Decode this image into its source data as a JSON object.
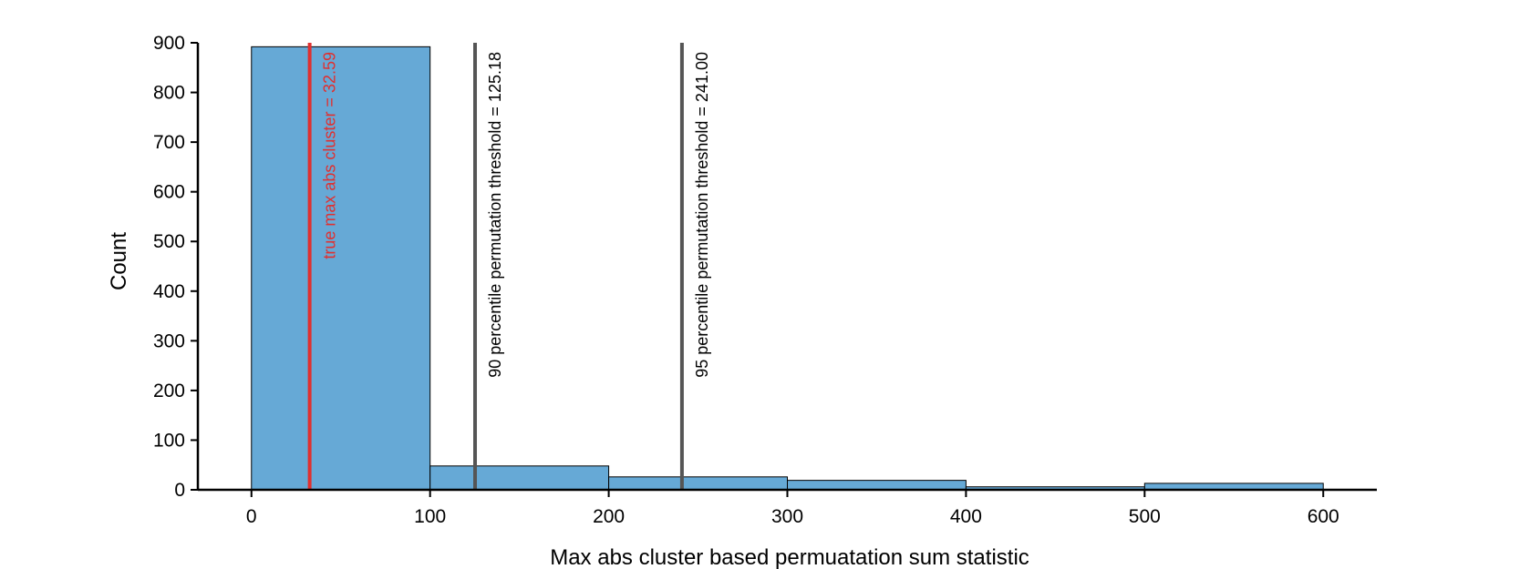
{
  "chart_data": {
    "type": "bar",
    "title": "",
    "xlabel": "Max abs cluster based permuatation sum statistic",
    "ylabel": "Count",
    "xlim": [
      -30,
      630
    ],
    "ylim": [
      0,
      900
    ],
    "xticks": [
      0,
      100,
      200,
      300,
      400,
      500,
      600
    ],
    "yticks": [
      0,
      100,
      200,
      300,
      400,
      500,
      600,
      700,
      800,
      900
    ],
    "bins": [
      {
        "x0": 0,
        "x1": 100,
        "count": 892
      },
      {
        "x0": 100,
        "x1": 200,
        "count": 48
      },
      {
        "x0": 200,
        "x1": 300,
        "count": 26
      },
      {
        "x0": 300,
        "x1": 400,
        "count": 19
      },
      {
        "x0": 400,
        "x1": 500,
        "count": 6
      },
      {
        "x0": 500,
        "x1": 600,
        "count": 13
      }
    ],
    "bar_color": "#66a9d6",
    "grid": false,
    "vlines": [
      {
        "x": 32.59,
        "label": "true max abs cluster = 32.59",
        "color": "#e03030"
      },
      {
        "x": 125.18,
        "label": "90 percentile permutation threshold = 125.18",
        "color": "#555555"
      },
      {
        "x": 241.0,
        "label": "95 percentile permutation threshold = 241.00",
        "color": "#555555"
      }
    ]
  }
}
